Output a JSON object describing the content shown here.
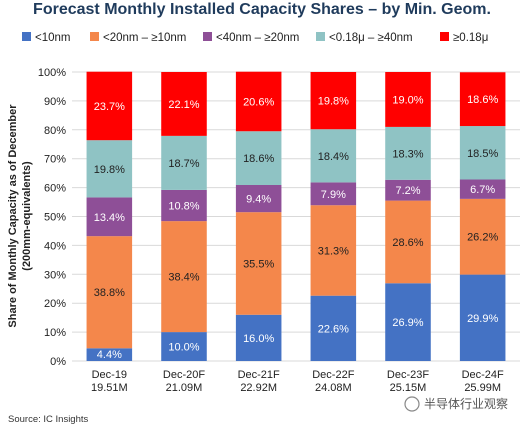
{
  "chart_data": {
    "type": "bar",
    "stacked": true,
    "percent": true,
    "title": "Forecast Monthly Installed Capacity Shares – by Min. Geom.",
    "ylabel": "Share of Monthly Capacity as of December (200mm-equivalents)",
    "ylabel_lines": [
      "Share of Monthly Capacity as of December",
      "(200mm-equivalents)"
    ],
    "ylim": [
      0,
      100
    ],
    "yticks": [
      "0%",
      "10%",
      "20%",
      "30%",
      "40%",
      "50%",
      "60%",
      "70%",
      "80%",
      "90%",
      "100%"
    ],
    "categories": [
      "Dec-19",
      "Dec-20F",
      "Dec-21F",
      "Dec-22F",
      "Dec-23F",
      "Dec-24F"
    ],
    "sublabels": [
      "19.51M",
      "21.09M",
      "22.92M",
      "24.08M",
      "25.15M",
      "25.99M"
    ],
    "grid": true,
    "legend_position": "top",
    "series": [
      {
        "name": "<10nm",
        "color": "#4472c4",
        "label_color": "#ffffff",
        "values": [
          4.4,
          10.0,
          16.0,
          22.6,
          26.9,
          29.9
        ],
        "labels": [
          "4.4%",
          "10.0%",
          "16.0%",
          "22.6%",
          "26.9%",
          "29.9%"
        ]
      },
      {
        "name": "<20nm – ≥10nm",
        "color": "#f4874b",
        "label_color": "#222222",
        "values": [
          38.8,
          38.4,
          35.5,
          31.3,
          28.6,
          26.2
        ],
        "labels": [
          "38.8%",
          "38.4%",
          "35.5%",
          "31.3%",
          "28.6%",
          "26.2%"
        ]
      },
      {
        "name": "<40nm – ≥20nm",
        "color": "#8e4f97",
        "label_color": "#ffffff",
        "values": [
          13.4,
          10.8,
          9.4,
          7.9,
          7.2,
          6.7
        ],
        "labels": [
          "13.4%",
          "10.8%",
          "9.4%",
          "7.9%",
          "7.2%",
          "6.7%"
        ]
      },
      {
        "name": "<0.18μ – ≥40nm",
        "color": "#8fc3c4",
        "label_color": "#222222",
        "values": [
          19.8,
          18.7,
          18.6,
          18.4,
          18.3,
          18.5
        ],
        "labels": [
          "19.8%",
          "18.7%",
          "18.6%",
          "18.4%",
          "18.3%",
          "18.5%"
        ]
      },
      {
        "name": "≥0.18μ",
        "color": "#ff0000",
        "label_color": "#ffffff",
        "values": [
          23.7,
          22.1,
          20.6,
          19.8,
          19.0,
          18.6
        ],
        "labels": [
          "23.7%",
          "22.1%",
          "20.6%",
          "19.8%",
          "19.0%",
          "18.6%"
        ]
      }
    ]
  },
  "footer": {
    "source": "Source:  IC Insights",
    "watermark": "半导体行业观察"
  }
}
